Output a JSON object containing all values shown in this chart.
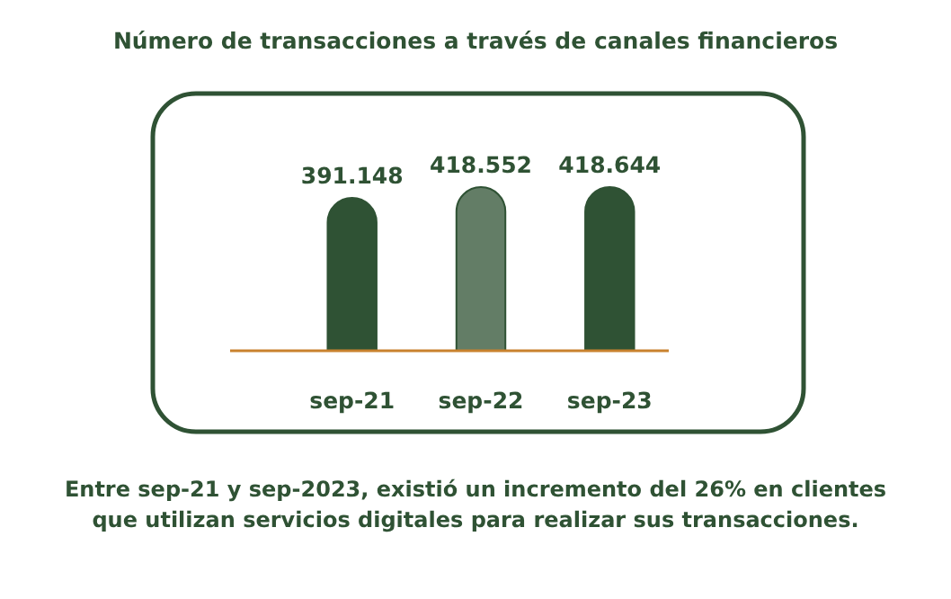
{
  "chart_data": {
    "type": "bar",
    "title": "Número de transacciones a través de canales financieros",
    "categories": [
      "sep-21",
      "sep-22",
      "sep-23"
    ],
    "values": [
      391148,
      418552,
      418644
    ],
    "value_labels": [
      "391.148",
      "418.552",
      "418.644"
    ],
    "colors": [
      "#2f5234",
      "#637d66",
      "#2f5234"
    ],
    "annotations": [
      "Entre sep-21 y sep-2023, existió un incremento del 26% en clientes que utilizan servicios digitales para realizar sus transacciones."
    ]
  }
}
